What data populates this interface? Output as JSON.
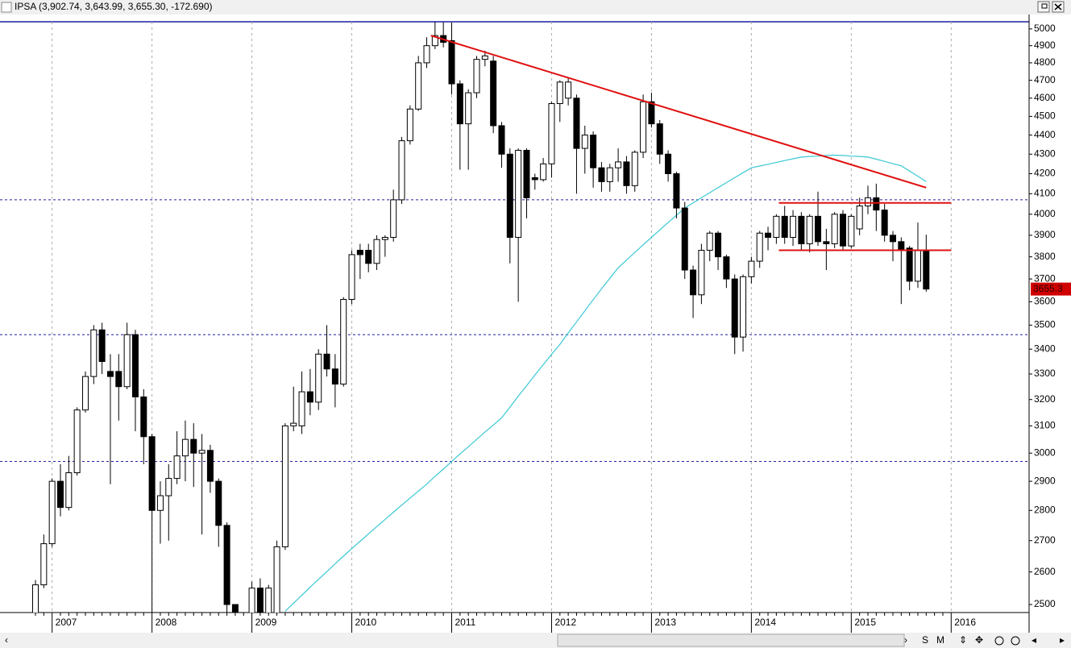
{
  "header": {
    "title": "IPSA (3,902.74, 3,643.99, 3,655.30, -172.690)"
  },
  "toolbar": {
    "buttons": [
      "S",
      "M"
    ]
  },
  "chart_data": {
    "type": "candlestick",
    "log_y": true,
    "ylim": [
      2476,
      5053
    ],
    "yticks": [
      2500,
      2600,
      2700,
      2800,
      2900,
      3000,
      3100,
      3200,
      3300,
      3400,
      3500,
      3600,
      3700,
      3800,
      3900,
      4000,
      4100,
      4200,
      4300,
      4400,
      4500,
      4600,
      4700,
      4800,
      4900,
      5000
    ],
    "categories": [
      null,
      null,
      "2007",
      null,
      null,
      null,
      null,
      null,
      null,
      null,
      null,
      null,
      null,
      null,
      "2008",
      null,
      null,
      null,
      null,
      null,
      null,
      null,
      null,
      null,
      null,
      null,
      "2009",
      null,
      null,
      null,
      null,
      null,
      null,
      null,
      null,
      null,
      null,
      null,
      "2010",
      null,
      null,
      null,
      null,
      null,
      null,
      null,
      null,
      null,
      null,
      null,
      "2011",
      null,
      null,
      null,
      null,
      null,
      null,
      null,
      null,
      null,
      null,
      null,
      "2012",
      null,
      null,
      null,
      null,
      null,
      null,
      null,
      null,
      null,
      null,
      null,
      "2013",
      null,
      null,
      null,
      null,
      null,
      null,
      null,
      null,
      null,
      null,
      null,
      "2014",
      null,
      null,
      null,
      null,
      null,
      null,
      null,
      null,
      null,
      null,
      null,
      "2015",
      null,
      null,
      null,
      null,
      null,
      null,
      null,
      null,
      null,
      null,
      null,
      "2016"
    ],
    "series": [
      {
        "name": "IPSA",
        "up_color": "#ffffff",
        "down_color": "#000000",
        "open": [
          2460,
          2560,
          2690,
          2900,
          2810,
          2930,
          3160,
          3290,
          3480,
          3310,
          3310,
          3250,
          3460,
          3210,
          3060,
          2800,
          2850,
          2910,
          2990,
          3050,
          3000,
          3010,
          2900,
          2750,
          2500,
          2430,
          2440,
          2550,
          2460,
          2470,
          2680,
          3100,
          3100,
          3230,
          3190,
          3380,
          3320,
          3260,
          3610,
          3830,
          3830,
          3770,
          3880,
          3890,
          4070,
          4370,
          4540,
          4800,
          4900,
          4960,
          4930,
          4680,
          4460,
          4630,
          4820,
          4810,
          4450,
          4300,
          3890,
          4320,
          4180,
          4170,
          4250,
          4570,
          4600,
          4600,
          4330,
          4400,
          4230,
          4160,
          4230,
          4260,
          4140,
          4310,
          4580,
          4460,
          4300,
          4200,
          4030,
          3740,
          3630,
          3830,
          3910,
          3800,
          3700,
          3450,
          3710,
          3780,
          3910,
          3890,
          3990,
          3890,
          3990,
          3860,
          3990,
          3870,
          3860,
          4000,
          3850,
          3930,
          4040,
          4080,
          4020,
          3900,
          3870,
          3840,
          3690,
          3827.99,
          null,
          null,
          null
        ],
        "high": [
          2575,
          2720,
          2910,
          2960,
          2990,
          3170,
          3310,
          3500,
          3510,
          3380,
          3380,
          3510,
          3480,
          3240,
          3070,
          2900,
          2960,
          3080,
          3120,
          3110,
          3070,
          3030,
          2910,
          2760,
          2500,
          2460,
          2570,
          2580,
          2560,
          2700,
          3110,
          3250,
          3310,
          3320,
          3400,
          3500,
          3380,
          3620,
          3830,
          3860,
          3860,
          3900,
          3900,
          4120,
          4390,
          4560,
          4840,
          4950,
          5050,
          5040,
          5040,
          4700,
          4650,
          4840,
          4870,
          4840,
          4470,
          4330,
          4330,
          4330,
          4200,
          4280,
          4580,
          4700,
          4710,
          4620,
          4450,
          4420,
          4260,
          4250,
          4330,
          4290,
          4320,
          4620,
          4630,
          4480,
          4320,
          4210,
          4060,
          3760,
          3860,
          3920,
          3920,
          3810,
          3720,
          3720,
          3800,
          3920,
          3940,
          4000,
          4040,
          4020,
          4010,
          4000,
          4110,
          3930,
          4010,
          4020,
          4000,
          4080,
          4140,
          4150,
          4050,
          3920,
          3890,
          3850,
          3960,
          3902.74,
          null,
          null,
          null
        ],
        "low": [
          2440,
          2550,
          2680,
          2780,
          2800,
          2920,
          3150,
          3260,
          3300,
          2890,
          3120,
          3240,
          3080,
          2960,
          2450,
          2690,
          2700,
          2890,
          2900,
          2880,
          2720,
          2860,
          2680,
          2460,
          2440,
          2380,
          2420,
          2430,
          2440,
          2460,
          2670,
          3080,
          3070,
          3140,
          3160,
          3290,
          3170,
          3250,
          3590,
          3700,
          3730,
          3740,
          3800,
          3870,
          4050,
          4350,
          4530,
          4770,
          4880,
          4890,
          4620,
          4220,
          4220,
          4600,
          4780,
          4410,
          4230,
          3770,
          3600,
          3980,
          4120,
          4160,
          4180,
          4470,
          4560,
          4100,
          4200,
          4130,
          4110,
          4110,
          4160,
          4100,
          4110,
          4280,
          4440,
          4250,
          4160,
          3980,
          3700,
          3530,
          3590,
          3780,
          3740,
          3660,
          3380,
          3390,
          3680,
          3750,
          3830,
          3860,
          3860,
          3850,
          3830,
          3820,
          3850,
          3740,
          3840,
          3830,
          3840,
          3900,
          4000,
          3920,
          3870,
          3780,
          3590,
          3650,
          3660,
          3643.99,
          null,
          null,
          null
        ],
        "close": [
          2560,
          2690,
          2900,
          2810,
          2930,
          3160,
          3290,
          3480,
          3350,
          3290,
          3250,
          3460,
          3210,
          3060,
          2800,
          2850,
          2910,
          2990,
          3050,
          3000,
          3010,
          2900,
          2750,
          2500,
          2470,
          2420,
          2550,
          2460,
          2550,
          2680,
          3100,
          3110,
          3230,
          3190,
          3380,
          3320,
          3260,
          3610,
          3810,
          3810,
          3770,
          3880,
          3890,
          4070,
          4370,
          4540,
          4800,
          4900,
          4960,
          4920,
          4680,
          4460,
          4630,
          4820,
          4840,
          4450,
          4300,
          3890,
          4320,
          4080,
          4170,
          4250,
          4570,
          4690,
          4690,
          4330,
          4400,
          4230,
          4160,
          4230,
          4260,
          4140,
          4310,
          4580,
          4460,
          4300,
          4200,
          4030,
          3740,
          3630,
          3830,
          3910,
          3800,
          3700,
          3450,
          3710,
          3780,
          3910,
          3890,
          3990,
          3890,
          3990,
          3860,
          3990,
          3870,
          3860,
          4000,
          3850,
          3990,
          4040,
          4080,
          4020,
          3900,
          3870,
          3830,
          3690,
          3827.99,
          3655.3,
          null,
          null,
          null
        ]
      }
    ],
    "moving_average": {
      "color": "#3cc8d4",
      "values": [
        null,
        null,
        null,
        null,
        null,
        null,
        null,
        null,
        null,
        null,
        null,
        null,
        null,
        null,
        null,
        null,
        null,
        null,
        null,
        null,
        null,
        null,
        null,
        null,
        null,
        null,
        null,
        null,
        null,
        null,
        2480,
        2504,
        2528,
        2553,
        2577,
        2601,
        2626,
        2650,
        2674,
        2698,
        2722,
        2746,
        2770,
        2794,
        2818,
        2842,
        2866,
        2890,
        2917,
        2943,
        2970,
        2997,
        3023,
        3050,
        3077,
        3103,
        3130,
        3171,
        3213,
        3254,
        3296,
        3337,
        3379,
        3420,
        3467,
        3514,
        3561,
        3609,
        3656,
        3703,
        3750,
        3785,
        3820,
        3855,
        3890,
        3925,
        3960,
        3995,
        4030,
        4055,
        4080,
        4105,
        4130,
        4155,
        4180,
        4205,
        4230,
        4239,
        4248,
        4257,
        4267,
        4276,
        4285,
        4288,
        4290,
        4293,
        4295,
        4293,
        4290,
        4288,
        4285,
        4274,
        4263,
        4251,
        4240,
        4213,
        4187,
        4160,
        null,
        null,
        null
      ]
    },
    "horizontal_lines": {
      "color": "#1f1fa0",
      "values": [
        4070,
        3460,
        2970
      ]
    },
    "trend_lines": [
      {
        "color": "#e01010",
        "values": [
          4960,
          4130
        ]
      },
      {
        "color": "#e01010",
        "values": [
          4055,
          4055
        ]
      },
      {
        "color": "#e01010",
        "values": [
          3830,
          3830
        ]
      }
    ],
    "last_price": {
      "value": 3655.3,
      "label": "3655.3",
      "color": "#d00000"
    }
  }
}
